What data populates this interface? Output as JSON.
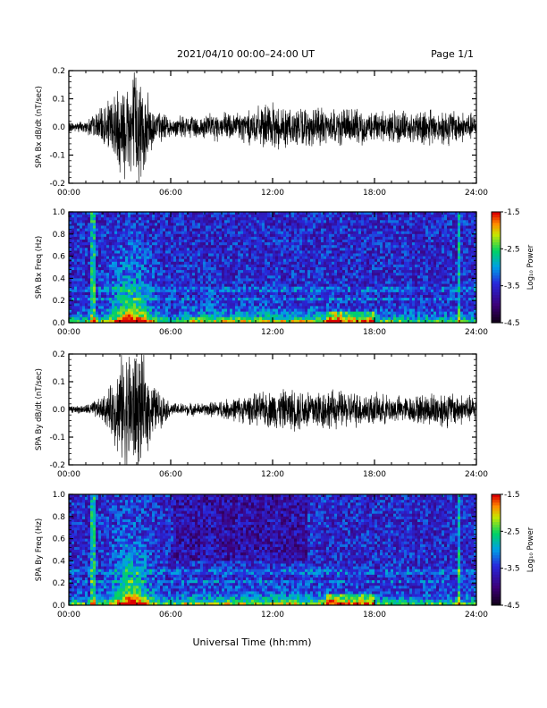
{
  "header": {
    "title": "2021/04/10  00:00–24:00 UT",
    "page": "Page 1/1"
  },
  "footer": {
    "xlabel": "Universal Time (hh:mm)"
  },
  "colorbar": {
    "label": "Log₁₀ Power",
    "ticks": [
      "-1.5",
      "-2.5",
      "-3.5",
      "-4.5"
    ]
  },
  "chart_data": [
    {
      "type": "line",
      "ylabel": "SPA Bx dB/dt (nT/sec)",
      "xlim": [
        0,
        24
      ],
      "ylim": [
        -0.2,
        0.2
      ],
      "x_ticks": [
        "00:00",
        "06:00",
        "12:00",
        "18:00",
        "24:00"
      ],
      "y_ticks": [
        "0.2",
        "0.1",
        "0.0",
        "-0.1",
        "-0.2"
      ],
      "series": [
        {
          "x": [
            0,
            1,
            2,
            2.5,
            3,
            3.5,
            4,
            4.5,
            5,
            6,
            8,
            10,
            12,
            14,
            16,
            18,
            20,
            22,
            24
          ],
          "values": [
            0.015,
            0.02,
            0.06,
            0.1,
            0.15,
            0.18,
            0.2,
            0.12,
            0.06,
            0.03,
            0.04,
            0.05,
            0.07,
            0.06,
            0.06,
            0.05,
            0.05,
            0.06,
            0.04
          ]
        }
      ]
    },
    {
      "type": "heatmap",
      "ylabel": "SPA Bx Freq (Hz)",
      "xlim": [
        0,
        24
      ],
      "ylim": [
        0,
        1.0
      ],
      "x_ticks": [
        "00:00",
        "06:00",
        "12:00",
        "18:00",
        "24:00"
      ],
      "y_ticks": [
        "1.0",
        "0.8",
        "0.6",
        "0.4",
        "0.2",
        "0.0"
      ],
      "zlim": [
        -4.5,
        -1.5
      ]
    },
    {
      "type": "line",
      "ylabel": "SPA By dB/dt (nT/sec)",
      "xlim": [
        0,
        24
      ],
      "ylim": [
        -0.2,
        0.2
      ],
      "x_ticks": [
        "00:00",
        "06:00",
        "12:00",
        "18:00",
        "24:00"
      ],
      "y_ticks": [
        "0.2",
        "0.1",
        "0.0",
        "-0.1",
        "-0.2"
      ],
      "series": [
        {
          "x": [
            0,
            1,
            2,
            2.5,
            3,
            3.5,
            4,
            4.5,
            5,
            6,
            8,
            10,
            12,
            14,
            16,
            18,
            20,
            22,
            24
          ],
          "values": [
            0.01,
            0.015,
            0.04,
            0.08,
            0.16,
            0.2,
            0.2,
            0.15,
            0.08,
            0.02,
            0.02,
            0.04,
            0.06,
            0.07,
            0.06,
            0.05,
            0.04,
            0.06,
            0.04
          ]
        }
      ]
    },
    {
      "type": "heatmap",
      "ylabel": "SPA By Freq (Hz)",
      "xlim": [
        0,
        24
      ],
      "ylim": [
        0,
        1.0
      ],
      "x_ticks": [
        "00:00",
        "06:00",
        "12:00",
        "18:00",
        "24:00"
      ],
      "y_ticks": [
        "1.0",
        "0.8",
        "0.6",
        "0.4",
        "0.2",
        "0.0"
      ],
      "zlim": [
        -4.5,
        -1.5
      ]
    }
  ]
}
